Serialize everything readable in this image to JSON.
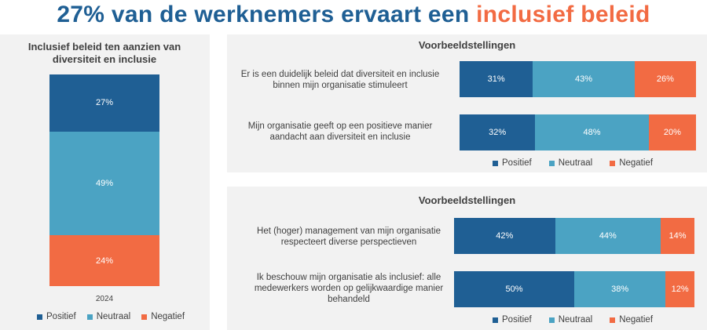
{
  "title": {
    "part1": "27% van de werknemers ervaart een",
    "part2": "inclusief beleid"
  },
  "colors": {
    "positief": "#1f5f94",
    "neutraal": "#4ba3c3",
    "negatief": "#f26b43",
    "title_blue": "#1f5f94",
    "title_orange": "#f26b43",
    "panel_bg": "#f2f2f2"
  },
  "legend": [
    "Positief",
    "Neutraal",
    "Negatief"
  ],
  "chart_data": [
    {
      "type": "bar",
      "stacked": true,
      "orientation": "vertical",
      "title": "Inclusief beleid ten aanzien van diversiteit en inclusie",
      "categories": [
        "2024"
      ],
      "series": [
        {
          "name": "Positief",
          "values": [
            27
          ]
        },
        {
          "name": "Neutraal",
          "values": [
            49
          ]
        },
        {
          "name": "Negatief",
          "values": [
            24
          ]
        }
      ],
      "data_labels": [
        "27%",
        "49%",
        "24%"
      ],
      "legend_placement": "bottom"
    },
    {
      "type": "bar",
      "stacked": true,
      "orientation": "horizontal",
      "title": "Voorbeeldstellingen",
      "categories": [
        "Er is een duidelijk beleid dat diversiteit en inclusie binnen mijn organisatie stimuleert",
        "Mijn organisatie geeft op een positieve manier aandacht aan diversiteit en inclusie"
      ],
      "series": [
        {
          "name": "Positief",
          "values": [
            31,
            32
          ]
        },
        {
          "name": "Neutraal",
          "values": [
            43,
            48
          ]
        },
        {
          "name": "Negatief",
          "values": [
            26,
            20
          ]
        }
      ],
      "legend_placement": "bottom"
    },
    {
      "type": "bar",
      "stacked": true,
      "orientation": "horizontal",
      "title": "Voorbeeldstellingen",
      "categories": [
        "Het (hoger) management van mijn organisatie respecteert diverse perspectieven",
        "Ik beschouw mijn organisatie als inclusief: alle medewerkers worden op gelijkwaardige manier behandeld"
      ],
      "series": [
        {
          "name": "Positief",
          "values": [
            42,
            50
          ]
        },
        {
          "name": "Neutraal",
          "values": [
            44,
            38
          ]
        },
        {
          "name": "Negatief",
          "values": [
            14,
            12
          ]
        }
      ],
      "legend_placement": "bottom"
    }
  ]
}
